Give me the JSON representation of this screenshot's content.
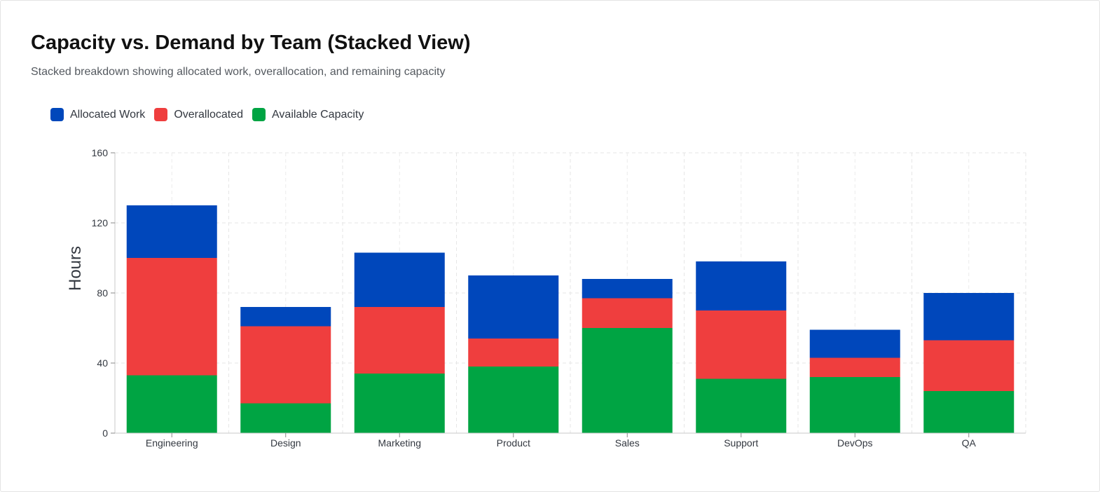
{
  "header": {
    "title": "Capacity vs. Demand by Team (Stacked View)",
    "subtitle": "Stacked breakdown showing allocated work, overallocation, and remaining capacity"
  },
  "legend": [
    {
      "label": "Allocated Work",
      "color": "#0047BB"
    },
    {
      "label": "Overallocated",
      "color": "#EF3E3E"
    },
    {
      "label": "Available Capacity",
      "color": "#00A443"
    }
  ],
  "chart_data": {
    "type": "bar",
    "stacked": true,
    "title": "Capacity vs. Demand by Team (Stacked View)",
    "subtitle": "Stacked breakdown showing allocated work, overallocation, and remaining capacity",
    "xlabel": "",
    "ylabel": "Hours",
    "ylim": [
      0,
      160
    ],
    "yticks": [
      0,
      40,
      80,
      120,
      160
    ],
    "grid": true,
    "legend_position": "top-left",
    "categories": [
      "Engineering",
      "Design",
      "Marketing",
      "Product",
      "Sales",
      "Support",
      "DevOps",
      "QA"
    ],
    "series": [
      {
        "name": "Available Capacity",
        "color": "#00A443",
        "values": [
          33,
          17,
          34,
          38,
          60,
          31,
          32,
          24
        ]
      },
      {
        "name": "Overallocated",
        "color": "#EF3E3E",
        "values": [
          67,
          44,
          38,
          16,
          17,
          39,
          11,
          29
        ]
      },
      {
        "name": "Allocated Work",
        "color": "#0047BB",
        "values": [
          30,
          11,
          31,
          36,
          11,
          28,
          16,
          27
        ]
      }
    ]
  }
}
